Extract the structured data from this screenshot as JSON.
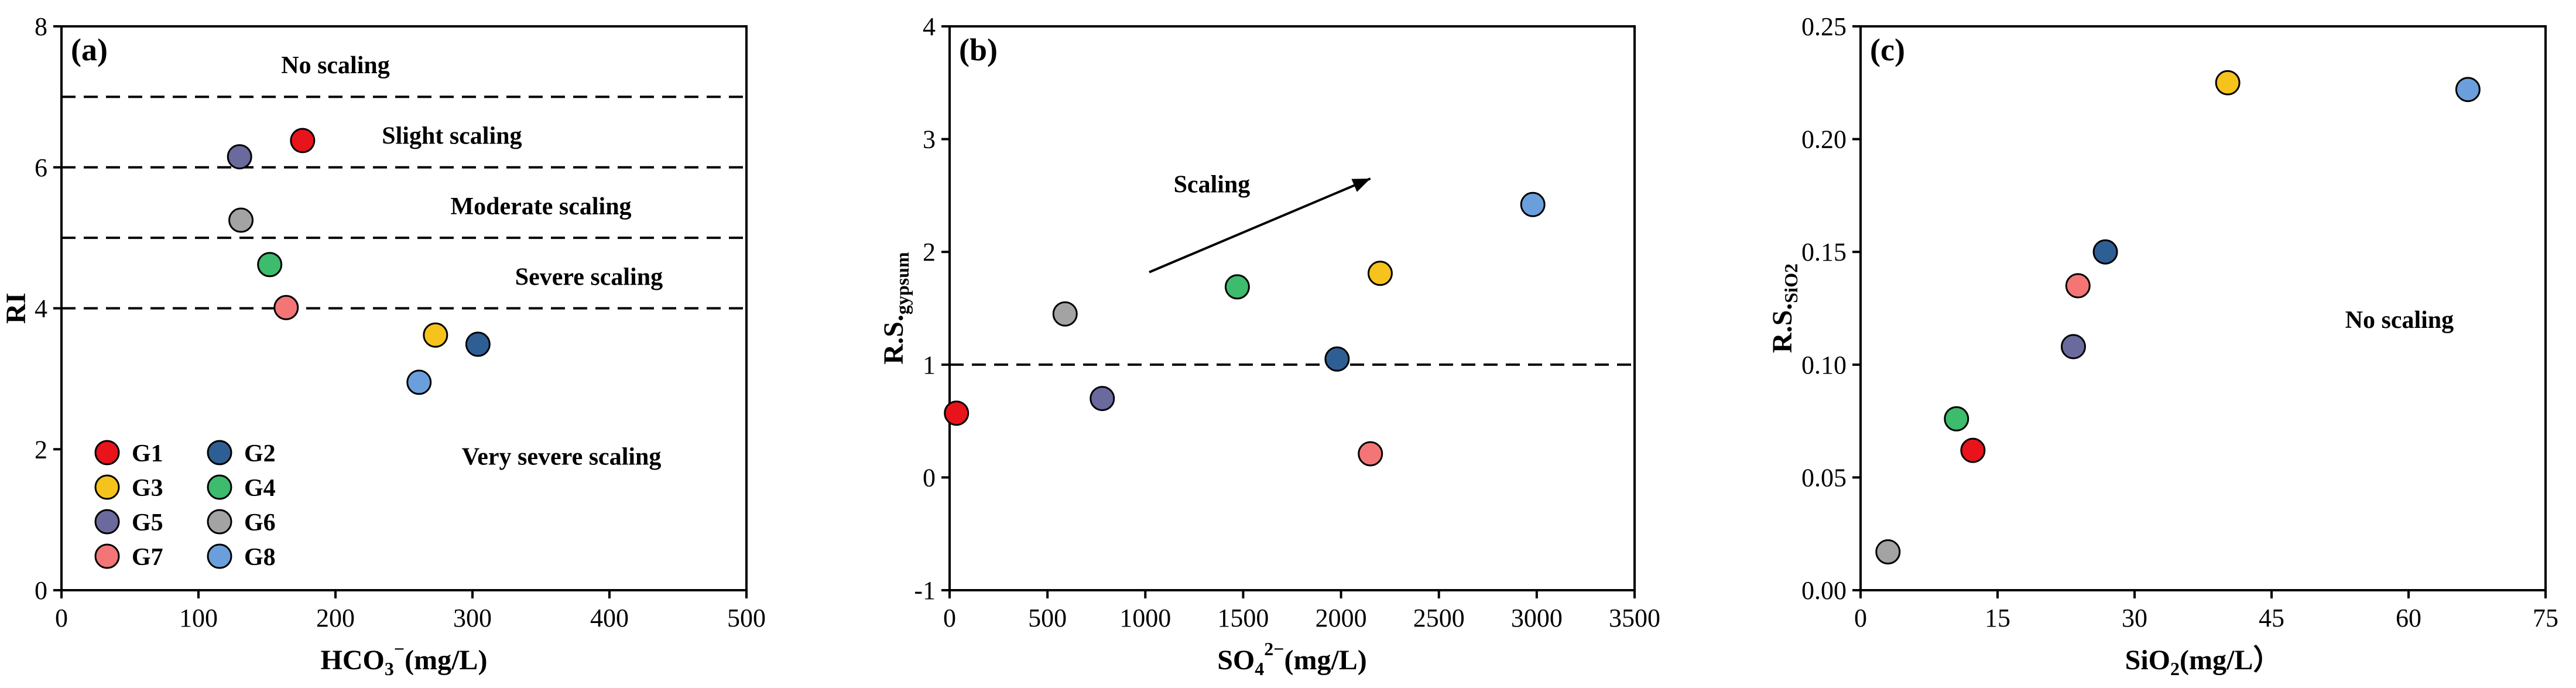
{
  "colors": {
    "G1": "#e8131b",
    "G2": "#2e5f94",
    "G3": "#f6c21c",
    "G4": "#3cbc6c",
    "G5": "#6a6a9e",
    "G6": "#a3a3a3",
    "G7": "#f47575",
    "G8": "#6b9fdc"
  },
  "legend": [
    "G1",
    "G2",
    "G3",
    "G4",
    "G5",
    "G6",
    "G7",
    "G8"
  ],
  "chart_data": [
    {
      "type": "scatter",
      "panel": "(a)",
      "xlabel_main": "HCO",
      "xlabel_sub": "3",
      "xlabel_sup": "−",
      "xlabel_tail": "(mg/L)",
      "ylabel": "RI",
      "xlim": [
        0,
        500
      ],
      "ylim": [
        0,
        8
      ],
      "xticks": [
        0,
        100,
        200,
        300,
        400,
        500
      ],
      "yticks": [
        0,
        2,
        4,
        6,
        8
      ],
      "thresholds": [
        7,
        6,
        5,
        4
      ],
      "zones": [
        {
          "label": "No scaling",
          "x": 200,
          "y": 7.45
        },
        {
          "label": "Slight scaling",
          "x": 285,
          "y": 6.45
        },
        {
          "label": "Moderate scaling",
          "x": 350,
          "y": 5.45
        },
        {
          "label": "Severe scaling",
          "x": 385,
          "y": 4.45
        },
        {
          "label": "Very severe scaling",
          "x": 365,
          "y": 1.9
        }
      ],
      "points": [
        {
          "group": "G1",
          "x": 176,
          "y": 6.38
        },
        {
          "group": "G5",
          "x": 130,
          "y": 6.15
        },
        {
          "group": "G6",
          "x": 131,
          "y": 5.25
        },
        {
          "group": "G4",
          "x": 152,
          "y": 4.62
        },
        {
          "group": "G7",
          "x": 164,
          "y": 4.01
        },
        {
          "group": "G3",
          "x": 273,
          "y": 3.62
        },
        {
          "group": "G2",
          "x": 304,
          "y": 3.49
        },
        {
          "group": "G8",
          "x": 261,
          "y": 2.95
        }
      ]
    },
    {
      "type": "scatter",
      "panel": "(b)",
      "xlabel_main": "SO",
      "xlabel_sub": "4",
      "xlabel_sup": "2−",
      "xlabel_tail": "(mg/L)",
      "ylabel": "R.S.",
      "ylabel_sub": "gypsum",
      "xlim": [
        0,
        3500
      ],
      "ylim": [
        -1,
        4
      ],
      "xticks": [
        0,
        500,
        1000,
        1500,
        2000,
        2500,
        3000,
        3500
      ],
      "yticks": [
        -1,
        0,
        1,
        2,
        3,
        4
      ],
      "thresholds": [
        1
      ],
      "annotation": {
        "label": "Scaling",
        "x": 1340,
        "y": 2.6
      },
      "arrow": {
        "from": [
          1020,
          1.82
        ],
        "to": [
          2150,
          2.65
        ]
      },
      "points": [
        {
          "group": "G1",
          "x": 35,
          "y": 0.57
        },
        {
          "group": "G6",
          "x": 590,
          "y": 1.45
        },
        {
          "group": "G5",
          "x": 780,
          "y": 0.7
        },
        {
          "group": "G4",
          "x": 1470,
          "y": 1.69
        },
        {
          "group": "G2",
          "x": 1980,
          "y": 1.05
        },
        {
          "group": "G7",
          "x": 2150,
          "y": 0.21
        },
        {
          "group": "G3",
          "x": 2200,
          "y": 1.81
        },
        {
          "group": "G8",
          "x": 2980,
          "y": 2.42
        }
      ]
    },
    {
      "type": "scatter",
      "panel": "(c)",
      "xlabel_main": "SiO",
      "xlabel_sub": "2",
      "xlabel_tail": "(mg/L）",
      "ylabel": "R.S.",
      "ylabel_sub": "SiO2",
      "xlim": [
        0,
        75
      ],
      "ylim": [
        0,
        0.25
      ],
      "xticks": [
        0,
        15,
        30,
        45,
        60,
        75
      ],
      "yticks": [
        0.0,
        0.05,
        0.1,
        0.15,
        0.2,
        0.25
      ],
      "ytick_labels": [
        "0.00",
        "0.05",
        "0.10",
        "0.15",
        "0.20",
        "0.25"
      ],
      "annotation": {
        "label": "No scaling",
        "x": 59,
        "y": 0.12
      },
      "points": [
        {
          "group": "G6",
          "x": 3.0,
          "y": 0.017
        },
        {
          "group": "G4",
          "x": 10.5,
          "y": 0.076
        },
        {
          "group": "G1",
          "x": 12.3,
          "y": 0.062
        },
        {
          "group": "G5",
          "x": 23.3,
          "y": 0.108
        },
        {
          "group": "G7",
          "x": 23.8,
          "y": 0.135
        },
        {
          "group": "G2",
          "x": 26.8,
          "y": 0.15
        },
        {
          "group": "G3",
          "x": 40.2,
          "y": 0.225
        },
        {
          "group": "G8",
          "x": 66.5,
          "y": 0.222
        }
      ]
    }
  ]
}
